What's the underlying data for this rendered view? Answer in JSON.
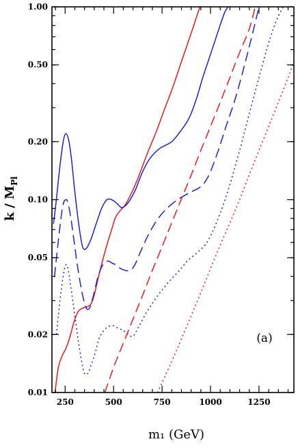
{
  "chart_data": {
    "type": "line",
    "xlabel": "m₁ (GeV)",
    "ylabel": "k / M_Pl",
    "ylabel_main": "k / M",
    "ylabel_sub": "Pl",
    "panel_label": "(a)",
    "xlim": [
      182,
      1430
    ],
    "ylim": [
      0.01,
      1.0
    ],
    "yscale": "log",
    "x_ticks": [
      250,
      500,
      750,
      1000,
      1250
    ],
    "x_tick_labels": [
      "250",
      "500",
      "750",
      "1000",
      "1250"
    ],
    "y_ticks": [
      0.01,
      0.02,
      0.05,
      0.1,
      0.2,
      0.5,
      1.0
    ],
    "y_tick_labels": [
      "0.01",
      "0.02",
      "0.05",
      "0.10",
      "0.20",
      "0.50",
      "1.00"
    ],
    "colors": {
      "red": "#e31a1c",
      "blue": "#1f1fcc"
    },
    "series": [
      {
        "color": "#e31a1c",
        "style": "solid",
        "x": [
          198,
          215,
          235,
          255,
          275,
          300,
          320,
          345,
          370,
          385,
          400,
          420,
          440,
          465,
          490,
          510,
          535,
          560,
          590,
          620,
          650,
          680,
          720,
          760,
          800,
          850,
          900,
          945
        ],
        "y": [
          0.01,
          0.0135,
          0.0155,
          0.017,
          0.0195,
          0.024,
          0.0265,
          0.0275,
          0.028,
          0.029,
          0.032,
          0.039,
          0.047,
          0.058,
          0.07,
          0.081,
          0.088,
          0.094,
          0.107,
          0.125,
          0.15,
          0.18,
          0.225,
          0.29,
          0.37,
          0.52,
          0.73,
          1.0
        ]
      },
      {
        "color": "#1f1fcc",
        "style": "solid",
        "x": [
          190,
          205,
          220,
          240,
          255,
          270,
          285,
          300,
          320,
          340,
          360,
          385,
          410,
          440,
          465,
          490,
          515,
          540,
          560,
          580,
          600,
          620,
          650,
          690,
          740,
          800,
          850,
          880,
          900,
          930,
          960,
          990,
          1030,
          1070,
          1090
        ],
        "y": [
          0.075,
          0.1,
          0.14,
          0.2,
          0.22,
          0.2,
          0.155,
          0.11,
          0.075,
          0.057,
          0.056,
          0.063,
          0.075,
          0.091,
          0.1,
          0.1,
          0.096,
          0.091,
          0.093,
          0.098,
          0.106,
          0.117,
          0.14,
          0.165,
          0.185,
          0.2,
          0.23,
          0.255,
          0.28,
          0.34,
          0.43,
          0.53,
          0.7,
          0.92,
          1.0
        ]
      },
      {
        "color": "#1f1fcc",
        "style": "dashed",
        "x": [
          195,
          210,
          225,
          240,
          255,
          265,
          280,
          295,
          310,
          330,
          350,
          365,
          380,
          400,
          420,
          445,
          470,
          490,
          510,
          535,
          560,
          585,
          610,
          640,
          680,
          730,
          780,
          830,
          880,
          910,
          940,
          970,
          1000,
          1040,
          1080,
          1130,
          1180,
          1220,
          1250
        ],
        "y": [
          0.04,
          0.055,
          0.075,
          0.095,
          0.1,
          0.096,
          0.08,
          0.062,
          0.048,
          0.036,
          0.029,
          0.027,
          0.028,
          0.033,
          0.04,
          0.046,
          0.048,
          0.047,
          0.046,
          0.044,
          0.043,
          0.043,
          0.046,
          0.054,
          0.066,
          0.08,
          0.091,
          0.1,
          0.107,
          0.111,
          0.115,
          0.123,
          0.14,
          0.18,
          0.24,
          0.34,
          0.52,
          0.75,
          1.0
        ]
      },
      {
        "color": "#1f1fcc",
        "style": "dotted",
        "x": [
          205,
          215,
          230,
          245,
          255,
          265,
          280,
          300,
          320,
          345,
          365,
          385,
          405,
          425,
          450,
          475,
          500,
          525,
          550,
          575,
          600,
          630,
          670,
          720,
          760,
          800,
          840,
          880,
          930,
          970,
          1000,
          1050,
          1100,
          1150,
          1200,
          1250,
          1300,
          1340,
          1375
        ],
        "y": [
          0.02,
          0.025,
          0.034,
          0.043,
          0.046,
          0.044,
          0.035,
          0.025,
          0.018,
          0.013,
          0.0125,
          0.014,
          0.016,
          0.019,
          0.021,
          0.022,
          0.0222,
          0.0215,
          0.021,
          0.02,
          0.0196,
          0.022,
          0.026,
          0.031,
          0.035,
          0.039,
          0.043,
          0.048,
          0.053,
          0.058,
          0.065,
          0.085,
          0.12,
          0.18,
          0.28,
          0.43,
          0.65,
          0.85,
          1.0
        ]
      },
      {
        "color": "#e31a1c",
        "style": "dashed",
        "x": [
          455,
          500,
          550,
          600,
          650,
          700,
          750,
          800,
          850,
          900,
          950,
          1000,
          1050,
          1100,
          1150,
          1200,
          1230
        ],
        "y": [
          0.01,
          0.0135,
          0.018,
          0.024,
          0.032,
          0.043,
          0.057,
          0.076,
          0.101,
          0.134,
          0.18,
          0.24,
          0.32,
          0.43,
          0.58,
          0.77,
          1.0
        ]
      },
      {
        "color": "#e31a1c",
        "style": "dotted",
        "x": [
          727,
          800,
          850,
          900,
          950,
          1000,
          1050,
          1100,
          1150,
          1200,
          1250,
          1300,
          1350,
          1400,
          1430
        ],
        "y": [
          0.01,
          0.0145,
          0.019,
          0.025,
          0.033,
          0.044,
          0.058,
          0.076,
          0.1,
          0.135,
          0.18,
          0.24,
          0.32,
          0.43,
          0.52
        ]
      }
    ]
  }
}
